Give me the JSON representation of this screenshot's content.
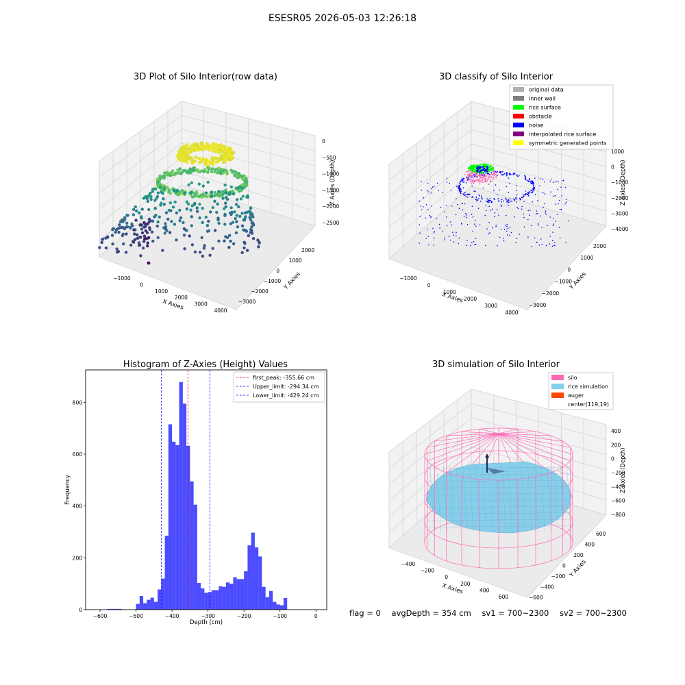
{
  "suptitle": "ESESR05 2026-05-03 12:26:18",
  "chart_data": [
    {
      "type": "scatter",
      "title": "3D Plot of Silo Interior(row data)",
      "xlabel": "X Axies",
      "ylabel": "Y Axies",
      "zlabel": "Z Axies (Depth)",
      "x_ticks": [
        "−1000",
        "0",
        "1000",
        "2000",
        "3000",
        "4000"
      ],
      "y_ticks": [
        "2000",
        "1000",
        "0",
        "−1000",
        "−2000",
        "−3000"
      ],
      "z_ticks": [
        "0",
        "−500",
        "−1000",
        "−1500",
        "−2000",
        "−2500"
      ],
      "xlim": [
        -1500,
        4500
      ],
      "ylim": [
        -3500,
        2500
      ],
      "zlim": [
        -2800,
        100
      ],
      "colormap": "viridis"
    },
    {
      "type": "scatter",
      "title": "3D classify of Silo Interior",
      "xlabel": "X Axies",
      "ylabel": "Y Axies",
      "zlabel": "Z Axies (Depth)",
      "x_ticks": [
        "−1000",
        "0",
        "1000",
        "2000",
        "3000",
        "4000"
      ],
      "y_ticks": [
        "2000",
        "1000",
        "0",
        "−1000",
        "−2000",
        "−3000"
      ],
      "z_ticks": [
        "1000",
        "0",
        "−1000",
        "−2000",
        "−3000",
        "−4000"
      ],
      "legend": [
        {
          "name": "original data",
          "color": "#b0b0b0"
        },
        {
          "name": "inner wall",
          "color": "#808080"
        },
        {
          "name": "rice surface",
          "color": "#00ff00"
        },
        {
          "name": "obstacle",
          "color": "#ff0000"
        },
        {
          "name": "noise",
          "color": "#0000ff"
        },
        {
          "name": "interpolated rice surface",
          "color": "#800080"
        },
        {
          "name": "symmetric generated points",
          "color": "#ffff00"
        }
      ],
      "legend_position": "top-right"
    },
    {
      "type": "bar",
      "title": "Histogram of Z-Axies (Height) Values",
      "xlabel": "Depth (cm)",
      "ylabel": "Frequency",
      "xlim": [
        -640,
        30
      ],
      "ylim": [
        0,
        925
      ],
      "x_ticks": [
        -600,
        -500,
        -400,
        -300,
        -200,
        -100,
        0
      ],
      "y_ticks": [
        0,
        200,
        400,
        600,
        800
      ],
      "bar_color": "#0000ff",
      "bin_width": 10,
      "bins_start": [
        -580,
        -570,
        -560,
        -550,
        -540,
        -530,
        -520,
        -510,
        -500,
        -490,
        -480,
        -470,
        -460,
        -450,
        -440,
        -430,
        -420,
        -410,
        -400,
        -390,
        -380,
        -370,
        -360,
        -350,
        -340,
        -330,
        -320,
        -310,
        -300,
        -290,
        -280,
        -270,
        -260,
        -250,
        -240,
        -230,
        -220,
        -210,
        -200,
        -190,
        -180,
        -170,
        -160,
        -150,
        -140,
        -130,
        -120,
        -110,
        -100,
        -90,
        -80,
        -70,
        -60,
        -50,
        -40,
        -30,
        -20,
        -10
      ],
      "counts": [
        3,
        3,
        3,
        3,
        0,
        0,
        0,
        0,
        22,
        53,
        25,
        38,
        46,
        30,
        78,
        120,
        285,
        715,
        648,
        635,
        878,
        795,
        632,
        495,
        405,
        103,
        82,
        65,
        68,
        75,
        75,
        90,
        88,
        105,
        100,
        125,
        118,
        118,
        148,
        248,
        297,
        240,
        205,
        88,
        48,
        72,
        30,
        20,
        17,
        45,
        0,
        0,
        0,
        0,
        0,
        0,
        0,
        0
      ],
      "vlines": [
        {
          "label": "first_peak: -355.66 cm",
          "x": -355.66,
          "color": "#ff0000"
        },
        {
          "label": "Upper_limit: -294.34 cm",
          "x": -294.34,
          "color": "#0000ff"
        },
        {
          "label": "Lower_limit: -429.24 cm",
          "x": -429.24,
          "color": "#0000ff"
        }
      ],
      "legend_position": "top-right"
    },
    {
      "type": "surface",
      "title": "3D simulation of Silo Interior",
      "xlabel": "X Axies",
      "ylabel": "Y Axies",
      "zlabel": "Z Axies (Depth)",
      "x_ticks": [
        "−400",
        "−200",
        "0",
        "200",
        "400",
        "600"
      ],
      "y_ticks": [
        "600",
        "400",
        "200",
        "0",
        "−200",
        "−400",
        "−600"
      ],
      "z_ticks": [
        "400",
        "200",
        "0",
        "−200",
        "−400",
        "−600",
        "−800"
      ],
      "legend": [
        {
          "name": "silo",
          "color": "#ff69b4"
        },
        {
          "name": "rice simulation",
          "color": "#87ceeb"
        },
        {
          "name": "auger",
          "color": "#ff4500"
        },
        {
          "name": "center(119,19)",
          "color": ""
        }
      ],
      "legend_position": "top-right"
    }
  ],
  "caption": {
    "flag": "flag = 0",
    "avg_depth": "avgDepth = 354 cm",
    "sv1": "sv1 = 700~2300",
    "sv2": "sv2 = 700~2300"
  }
}
